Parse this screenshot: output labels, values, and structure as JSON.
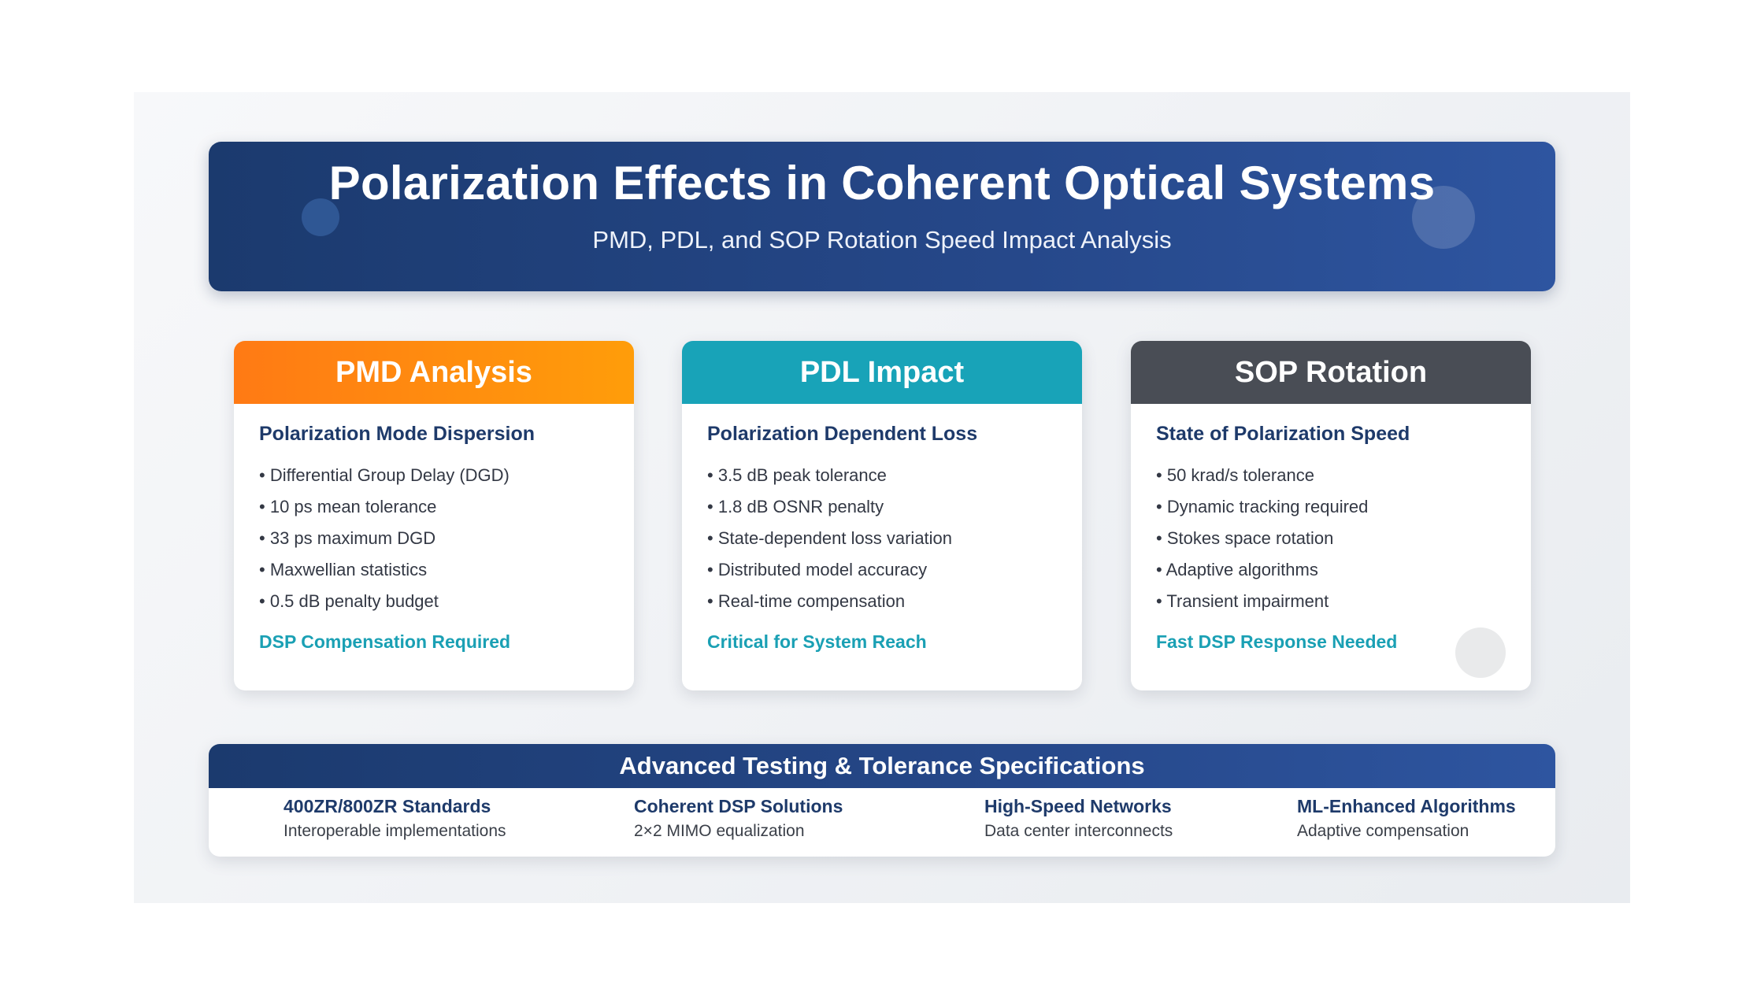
{
  "header": {
    "title": "Polarization Effects in Coherent Optical Systems",
    "subtitle": "PMD, PDL, and SOP Rotation Speed Impact Analysis"
  },
  "cards": [
    {
      "title": "PMD Analysis",
      "subtitle": "Polarization Mode Dispersion",
      "items": [
        "Differential Group Delay (DGD)",
        "10 ps mean tolerance",
        "33 ps maximum DGD",
        "Maxwellian statistics",
        "0.5 dB penalty budget"
      ],
      "note": "DSP Compensation Required",
      "header_color": "#ff8a10"
    },
    {
      "title": "PDL Impact",
      "subtitle": "Polarization Dependent Loss",
      "items": [
        "3.5 dB peak tolerance",
        "1.8 dB OSNR penalty",
        "State-dependent loss variation",
        "Distributed model accuracy",
        "Real-time compensation"
      ],
      "note": "Critical for System Reach",
      "header_color": "#18a3b8"
    },
    {
      "title": "SOP Rotation",
      "subtitle": "State of Polarization Speed",
      "items": [
        "50 krad/s tolerance",
        "Dynamic tracking required",
        "Stokes space rotation",
        "Adaptive algorithms",
        "Transient impairment"
      ],
      "note": "Fast DSP Response Needed",
      "header_color": "#494d55"
    }
  ],
  "footer": {
    "title": "Advanced Testing & Tolerance Specifications",
    "items": [
      {
        "title": "400ZR/800ZR Standards",
        "desc": "Interoperable implementations"
      },
      {
        "title": "Coherent DSP Solutions",
        "desc": "2×2 MIMO equalization"
      },
      {
        "title": "High-Speed Networks",
        "desc": "Data center interconnects"
      },
      {
        "title": "ML-Enhanced Algorithms",
        "desc": "Adaptive compensation"
      }
    ]
  },
  "colors": {
    "primary_navy": "#1e3a6a",
    "accent_teal": "#1aa0b4",
    "accent_orange": "#ff8a10",
    "slate": "#494d55"
  }
}
